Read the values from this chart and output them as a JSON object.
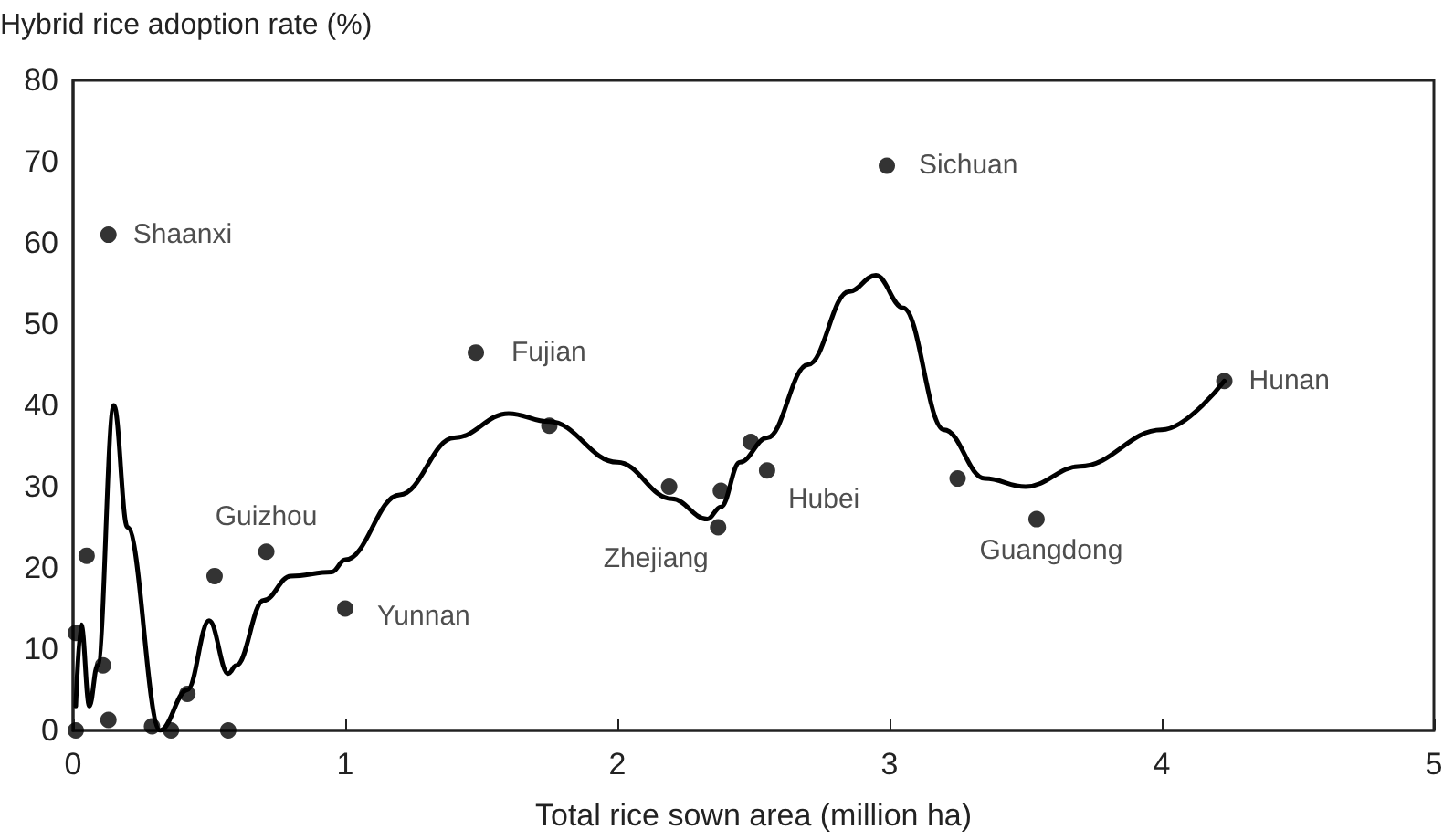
{
  "chart_data": {
    "type": "scatter",
    "xlabel": "Total rice sown area (million ha)",
    "ylabel": "Hybrid rice adoption rate (%)",
    "xlim": [
      0,
      5
    ],
    "xticks": [
      0,
      1,
      2,
      3,
      4,
      5
    ],
    "ylim": [
      0,
      80
    ],
    "yticks": [
      0,
      10,
      20,
      30,
      40,
      50,
      60,
      70,
      80
    ],
    "grid": false,
    "marker": "circle",
    "series": [
      {
        "color": "#000000",
        "x": [
          0.01,
          0.01,
          0.05,
          0.11,
          0.13,
          0.13,
          0.29,
          0.36,
          0.42,
          0.52,
          0.57,
          0.71,
          1.0,
          1.48,
          1.75,
          2.19,
          2.37,
          2.38,
          2.49,
          2.55,
          2.99,
          3.25,
          3.54,
          4.23
        ],
        "values": [
          12,
          0,
          21.5,
          8,
          1.3,
          61,
          0.5,
          0,
          4.5,
          19,
          0,
          22,
          15,
          46.5,
          37.5,
          30,
          25,
          29.5,
          35.5,
          32,
          69.5,
          31,
          26,
          43
        ],
        "value_labels": [
          null,
          null,
          null,
          null,
          null,
          "Shaanxi",
          null,
          null,
          null,
          null,
          null,
          "Guizhou",
          "Yunnan",
          "Fujian",
          null,
          null,
          "Zhejiang",
          null,
          null,
          "Hubei",
          "Sichuan",
          null,
          "Guangdong",
          "Hunan"
        ]
      },
      {
        "type": "line",
        "color": "#000000",
        "marker": "none",
        "x": [
          0.01,
          0.03,
          0.06,
          0.09,
          0.15,
          0.2,
          0.32,
          0.42,
          0.5,
          0.57,
          0.6,
          0.7,
          0.8,
          0.95,
          1.0,
          1.2,
          1.4,
          1.6,
          1.75,
          2.0,
          2.2,
          2.33,
          2.38,
          2.45,
          2.55,
          2.7,
          2.85,
          2.95,
          3.05,
          3.2,
          3.35,
          3.5,
          3.7,
          4.0,
          4.23
        ],
        "values": [
          3,
          13,
          3,
          8,
          40,
          25,
          0,
          5,
          13.5,
          7,
          8,
          16,
          19,
          19.5,
          21,
          29,
          36,
          39,
          38,
          33,
          28.5,
          26,
          27.5,
          33,
          36,
          45,
          54,
          56,
          52,
          37,
          31,
          30,
          32.5,
          37,
          43
        ]
      }
    ]
  }
}
